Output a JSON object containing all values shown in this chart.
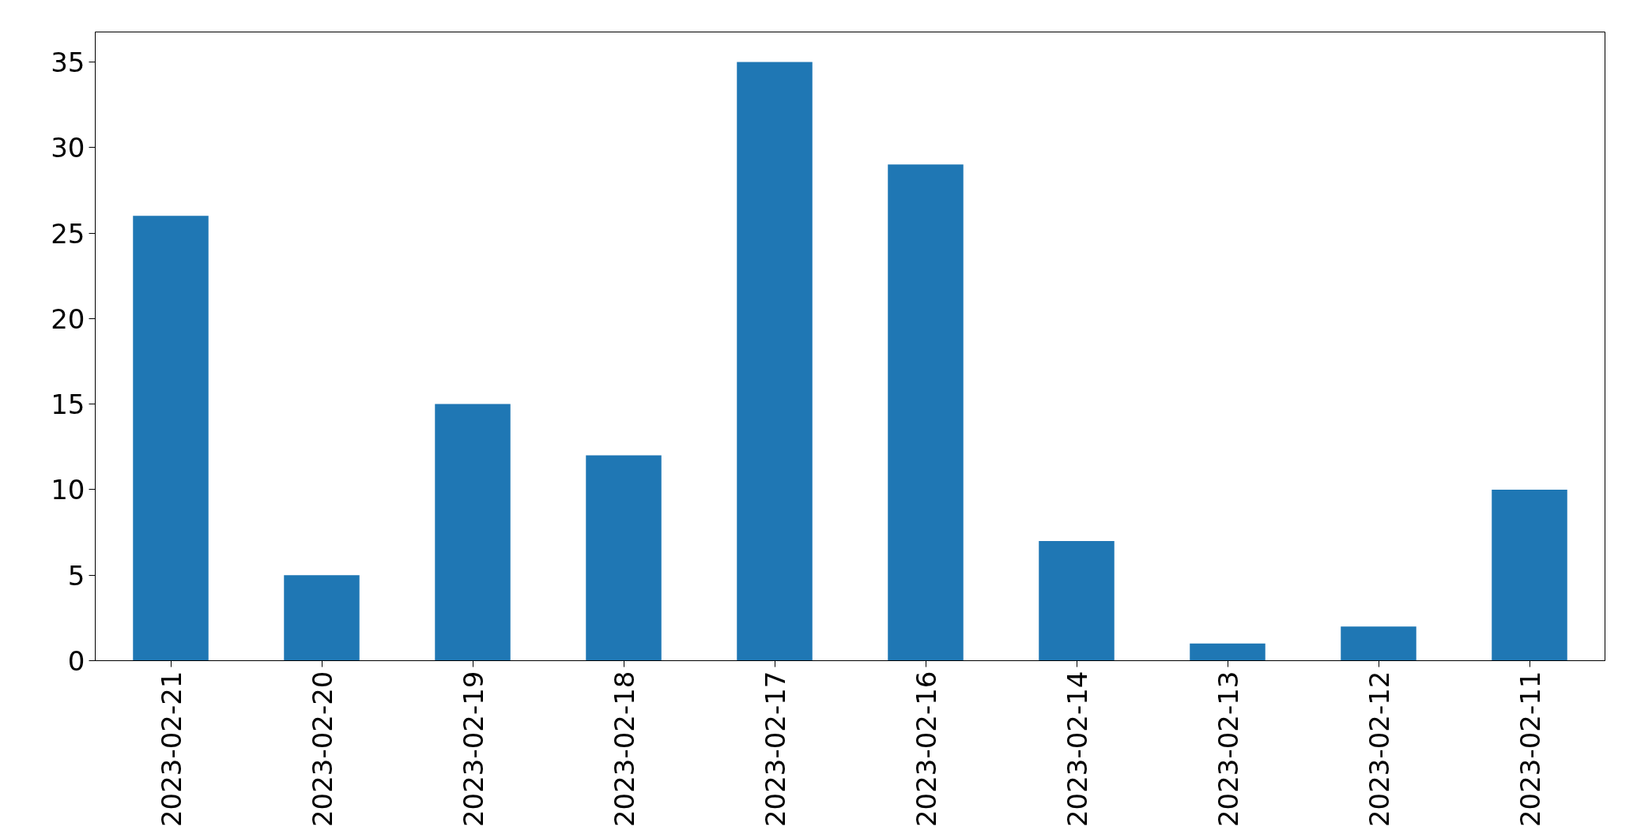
{
  "chart_data": {
    "type": "bar",
    "categories": [
      "2023-02-21",
      "2023-02-20",
      "2023-02-19",
      "2023-02-18",
      "2023-02-17",
      "2023-02-16",
      "2023-02-14",
      "2023-02-13",
      "2023-02-12",
      "2023-02-11"
    ],
    "values": [
      26,
      5,
      15,
      12,
      35,
      29,
      7,
      1,
      2,
      10
    ],
    "color": "#1f77b4",
    "ylim": [
      0,
      36.75
    ],
    "yticks": [
      0,
      5,
      10,
      15,
      20,
      25,
      30,
      35
    ],
    "grid": false
  }
}
